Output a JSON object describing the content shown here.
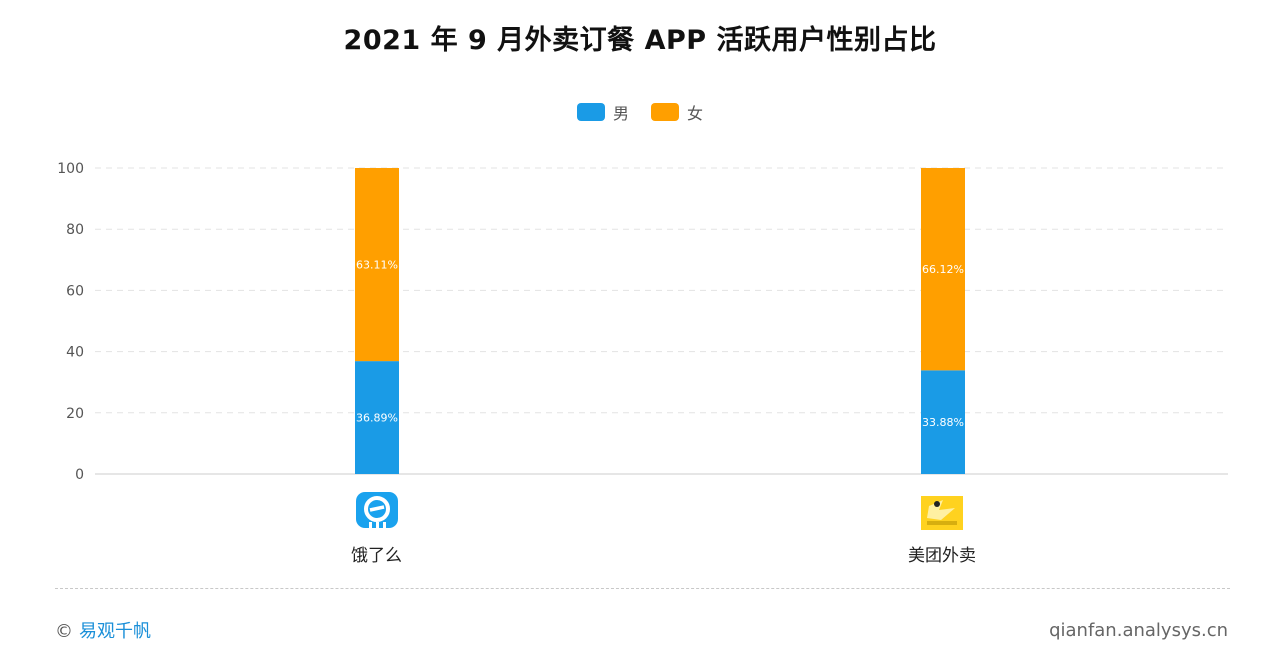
{
  "page": {
    "title": "2021 年 9 月外卖订餐 APP 活跃用户性别占比",
    "brand_symbol": "©",
    "brand_name": "易观千帆",
    "site": "qianfan.analysys.cn"
  },
  "legend": [
    {
      "label": "男",
      "color": "#1a9be6"
    },
    {
      "label": "女",
      "color": "#ff9f00"
    }
  ],
  "chart_data": {
    "type": "bar",
    "stacked": true,
    "categories": [
      "饿了么",
      "美团外卖"
    ],
    "series": [
      {
        "name": "男",
        "values": [
          36.89,
          33.88
        ],
        "labels": [
          "36.89%",
          "33.88%"
        ],
        "color": "#1a9be6"
      },
      {
        "name": "女",
        "values": [
          63.11,
          66.12
        ],
        "labels": [
          "63.11%",
          "66.12%"
        ],
        "color": "#ff9f00"
      }
    ],
    "title": "2021 年 9 月外卖订餐 APP 活跃用户性别占比",
    "ylim": [
      0,
      100
    ],
    "yticks": [
      0,
      20,
      40,
      60,
      80,
      100
    ],
    "grid": true,
    "legend_position": "top-center"
  },
  "logos": [
    {
      "name": "eleme-logo-icon",
      "color": "#1aa2ee"
    },
    {
      "name": "meituan-logo-icon",
      "color": "#ffd21f"
    }
  ]
}
